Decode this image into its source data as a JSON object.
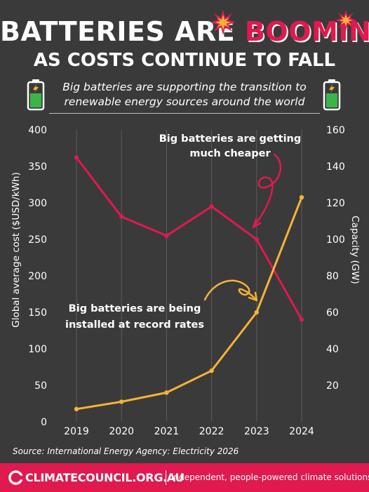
{
  "header": {
    "title_part1": "BATTERIES ARE",
    "title_part2": "BOOMING",
    "title_line2": "AS COSTS CONTINUE TO FALL",
    "subtitle_line1": "Big batteries are supporting the transition to",
    "subtitle_line2": "renewable energy sources around the world"
  },
  "icons": {
    "left_battery": "battery-charging-icon",
    "right_battery": "battery-charging-icon",
    "burst": "burst-icon",
    "logo": "climate-council-logo-icon"
  },
  "colors": {
    "background": "#3a3a3a",
    "cost_line": "#e0194f",
    "capacity_line": "#f5b335",
    "battery_fill": "#3ab54a",
    "footer": "#e0194f"
  },
  "chart_data": {
    "type": "line",
    "x": [
      "2019",
      "2020",
      "2021",
      "2022",
      "2023",
      "2024"
    ],
    "xlabel": "",
    "ylabel_left": "Global average cost ($USD/kWh)",
    "ylabel_right": "Capacity (GW)",
    "ylim_left": [
      0,
      400
    ],
    "ylim_right": [
      0,
      160
    ],
    "yticks_left": [
      "0",
      "50",
      "100",
      "150",
      "200",
      "250",
      "300",
      "350",
      "400"
    ],
    "yticks_right": [
      "20",
      "40",
      "60",
      "80",
      "100",
      "120",
      "140",
      "160"
    ],
    "grid": "vertical lines only",
    "series": [
      {
        "axis": "left",
        "color": "#e0194f",
        "values": [
          362,
          281,
          255,
          295,
          250,
          140
        ]
      },
      {
        "axis": "right",
        "color": "#f5b335",
        "values": [
          7,
          11,
          16,
          28,
          60,
          123
        ]
      }
    ],
    "annotations": [
      {
        "target": "cost",
        "line1": "Big batteries are getting",
        "line2": "much cheaper"
      },
      {
        "target": "capacity",
        "line1": "Big batteries are being",
        "line2": "installed at record rates"
      }
    ]
  },
  "source": "Source: International Energy Agency: Electricity 2026",
  "footer": {
    "brand": "CLIMATECOUNCIL.ORG.AU",
    "tagline": "Independent, people-powered climate solutions"
  }
}
